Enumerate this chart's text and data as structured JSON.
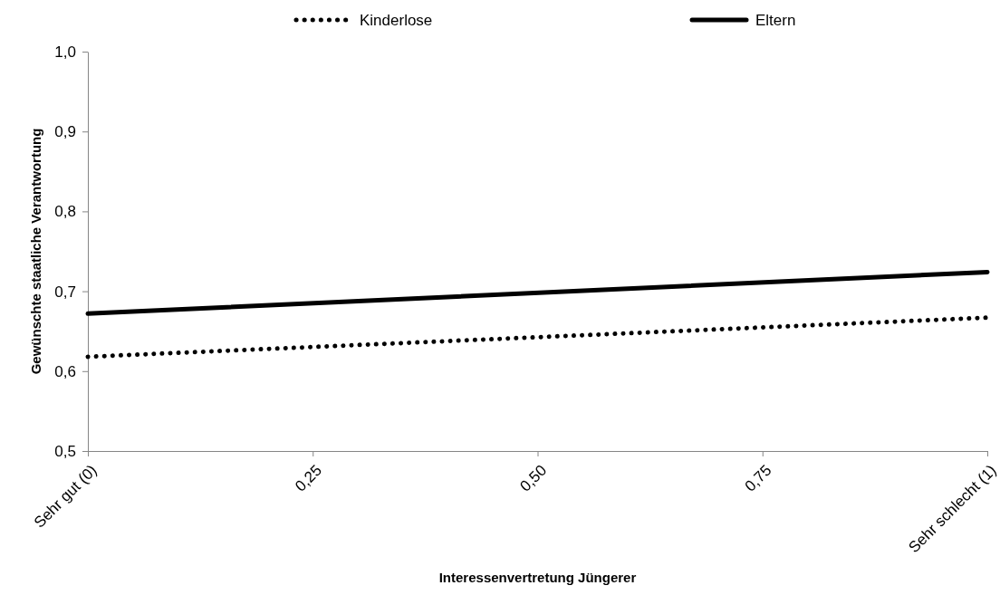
{
  "chart_data": {
    "type": "line",
    "xlabel": "Interessenvertretung Jüngerer",
    "ylabel": "Gewünschte staatliche Verantwortung",
    "x": [
      0,
      1
    ],
    "xlim": [
      0,
      1
    ],
    "xticks": [
      {
        "value": 0,
        "label": "Sehr gut (0)"
      },
      {
        "value": 0.25,
        "label": "0,25"
      },
      {
        "value": 0.5,
        "label": "0,50"
      },
      {
        "value": 0.75,
        "label": "0,75"
      },
      {
        "value": 1,
        "label": "Sehr schlecht (1)"
      }
    ],
    "ylim": [
      0.5,
      1.0
    ],
    "yticks": [
      {
        "value": 0.5,
        "label": "0,5"
      },
      {
        "value": 0.6,
        "label": "0,6"
      },
      {
        "value": 0.7,
        "label": "0,7"
      },
      {
        "value": 0.8,
        "label": "0,8"
      },
      {
        "value": 0.9,
        "label": "0,9"
      },
      {
        "value": 1.0,
        "label": "1,0"
      }
    ],
    "series": [
      {
        "name": "Kinderlose",
        "color": "#000000",
        "line_style": "dotted",
        "values": [
          0.618,
          0.667
        ]
      },
      {
        "name": "Eltern",
        "color": "#000000",
        "line_style": "solid",
        "values": [
          0.672,
          0.724
        ]
      }
    ],
    "grid": false,
    "legend": "top",
    "marker": "none"
  }
}
